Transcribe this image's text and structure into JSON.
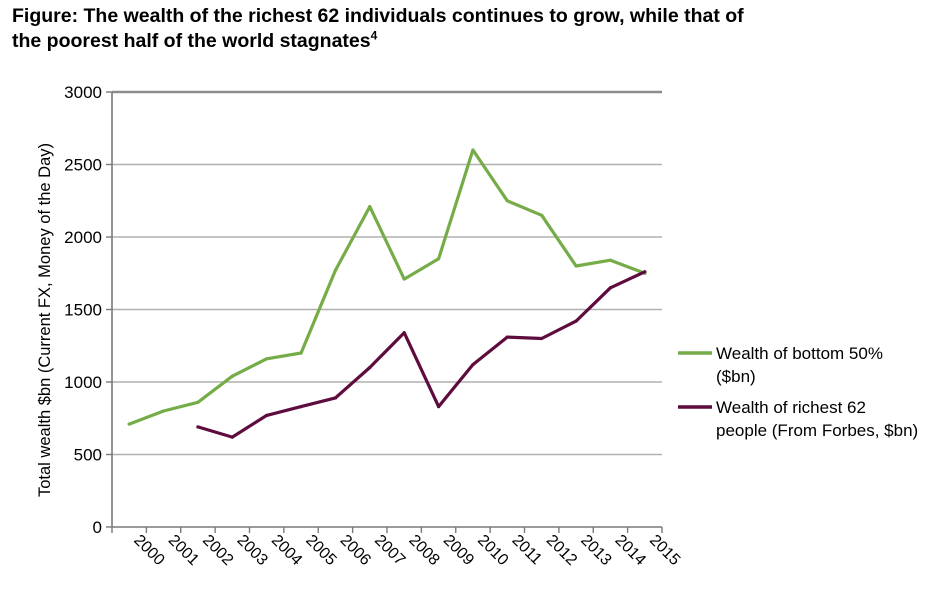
{
  "figure": {
    "title_line1": "Figure: The wealth of the richest 62 individuals continues to grow, while that of",
    "title_line2": "the poorest half of the world stagnates",
    "footnote": "4"
  },
  "chart_data": {
    "type": "line",
    "title": "Figure: The wealth of the richest 62 individuals continues to grow, while that of the poorest half of the world stagnates",
    "xlabel": "",
    "ylabel": "Total wealth $bn (Current FX, Money of the Day)",
    "categories": [
      "2000",
      "2001",
      "2002",
      "2003",
      "2004",
      "2005",
      "2006",
      "2007",
      "2008",
      "2009",
      "2010",
      "2011",
      "2012",
      "2013",
      "2014",
      "2015"
    ],
    "ylim": [
      0,
      3000
    ],
    "yticks": [
      0,
      500,
      1000,
      1500,
      2000,
      2500,
      3000
    ],
    "grid": "horizontal",
    "legend_position": "right",
    "series": [
      {
        "name": "Wealth of bottom 50% ($bn)",
        "legend_lines": [
          "Wealth of bottom 50%",
          "($bn)"
        ],
        "color": "#76ac48",
        "values": [
          710,
          800,
          860,
          1040,
          1160,
          1200,
          1770,
          2210,
          1710,
          1850,
          2600,
          2250,
          2150,
          1800,
          1840,
          1750
        ]
      },
      {
        "name": "Wealth of richest 62 people (From Forbes, $bn)",
        "legend_lines": [
          "Wealth of richest 62",
          "people (From Forbes, $bn)"
        ],
        "color": "#5e0c3d",
        "values": [
          null,
          null,
          690,
          620,
          770,
          830,
          890,
          1100,
          1340,
          830,
          1120,
          1310,
          1300,
          1420,
          1650,
          1760
        ]
      }
    ]
  }
}
